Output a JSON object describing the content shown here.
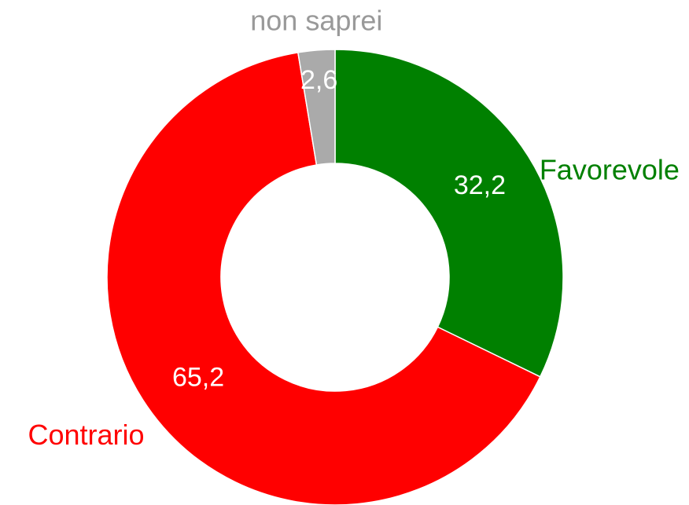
{
  "chart_data": {
    "type": "donut",
    "categories": [
      "Favorevole",
      "Contrario",
      "non saprei"
    ],
    "values": [
      32.2,
      65.2,
      2.6
    ],
    "value_labels": [
      "32,2",
      "65,2",
      "2,6"
    ],
    "colors": [
      "#008000",
      "#ff0000",
      "#aaaaaa"
    ]
  }
}
